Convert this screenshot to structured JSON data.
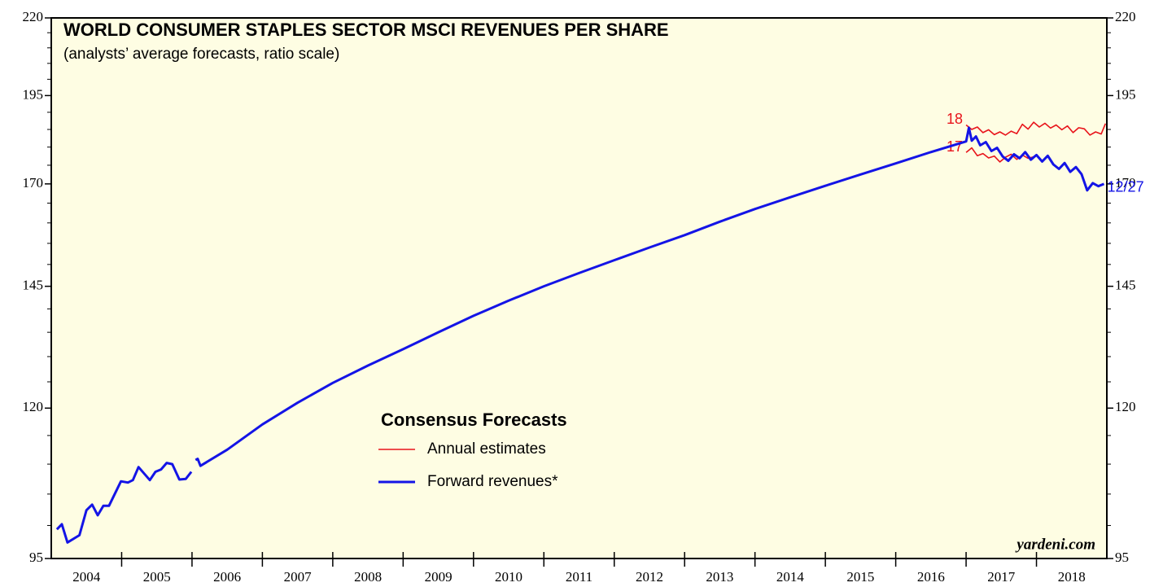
{
  "chart_data": {
    "type": "line",
    "title": "WORLD CONSUMER STAPLES SECTOR MSCI REVENUES PER SHARE",
    "subtitle": "(analysts’ average forecasts, ratio scale)",
    "legend_title": "Consensus Forecasts",
    "source": "yardeni.com",
    "log_scale": true,
    "categories": [
      "2004",
      "2005",
      "2006",
      "2007",
      "2008",
      "2009",
      "2010",
      "2011",
      "2012",
      "2013",
      "2014",
      "2015",
      "2016",
      "2017",
      "2018"
    ],
    "xlim": [
      2004,
      2019
    ],
    "ylim": [
      95,
      220
    ],
    "yticks": [
      95,
      120,
      145,
      170,
      195,
      220
    ],
    "yminorticks": [
      100,
      105,
      110,
      115,
      125,
      130,
      135,
      140,
      150,
      155,
      160,
      165,
      175,
      180,
      185,
      190,
      200,
      205,
      210,
      215
    ],
    "series": [
      {
        "name": "Annual estimates",
        "color": "#e8141b",
        "lines": [
          {
            "label": "18",
            "x": [
              2017.0,
              2017.08,
              2017.16,
              2017.24,
              2017.32,
              2017.4,
              2017.48,
              2017.56,
              2017.64,
              2017.72,
              2017.8,
              2017.88,
              2017.96,
              2018.04,
              2018.12,
              2018.2,
              2018.28,
              2018.36,
              2018.44,
              2018.52,
              2018.6,
              2018.68,
              2018.76,
              2018.84,
              2018.92,
              2018.98
            ],
            "values": [
              186.3,
              185.0,
              185.7,
              184.1,
              184.9,
              183.5,
              184.3,
              183.4,
              184.5,
              183.8,
              186.5,
              185.1,
              187.1,
              185.7,
              186.8,
              185.4,
              186.3,
              184.9,
              186.0,
              184.1,
              185.5,
              185.2,
              183.4,
              184.3,
              183.7,
              186.7
            ]
          },
          {
            "label": "17",
            "x": [
              2017.0,
              2017.08,
              2017.16,
              2017.24,
              2017.32,
              2017.4,
              2017.48,
              2017.56,
              2017.64,
              2017.72,
              2017.8,
              2017.88,
              2017.96
            ],
            "values": [
              178.5,
              179.8,
              177.6,
              178.2,
              177.0,
              177.5,
              175.9,
              177.2,
              178.0,
              176.6,
              177.8,
              176.9,
              177.3
            ]
          }
        ]
      },
      {
        "name": "Forward revenues*",
        "color": "#1414e6",
        "end_label": "12/27",
        "x": [
          2004.08,
          2004.15,
          2004.23,
          2004.4,
          2004.5,
          2004.58,
          2004.66,
          2004.74,
          2004.82,
          2004.99,
          2005.09,
          2005.16,
          2005.24,
          2005.4,
          2005.48,
          2005.56,
          2005.64,
          2005.72,
          2005.82,
          2005.91,
          2005.99,
          2006.02,
          2006.05,
          2006.08,
          2006.12,
          2006.5,
          2007,
          2007.5,
          2008,
          2008.5,
          2009,
          2009.5,
          2010,
          2010.5,
          2011,
          2011.5,
          2012,
          2012.5,
          2013,
          2013.5,
          2014,
          2014.5,
          2015,
          2015.5,
          2016,
          2016.5,
          2017.0,
          2017.04,
          2017.08,
          2017.14,
          2017.2,
          2017.28,
          2017.36,
          2017.44,
          2017.52,
          2017.6,
          2017.68,
          2017.76,
          2017.84,
          2017.92,
          2018.0,
          2018.08,
          2018.16,
          2018.24,
          2018.32,
          2018.4,
          2018.48,
          2018.56,
          2018.64,
          2018.72,
          2018.8,
          2018.88,
          2018.96
        ],
        "values": [
          99.4,
          100.2,
          97.4,
          98.5,
          102.4,
          103.3,
          101.6,
          103.1,
          103.1,
          107.1,
          106.9,
          107.3,
          109.5,
          107.3,
          108.7,
          109.1,
          110.2,
          110.0,
          107.4,
          107.5,
          108.7,
          null,
          110.7,
          110.9,
          109.7,
          112.5,
          117.0,
          121.0,
          124.8,
          128.2,
          131.5,
          135.0,
          138.5,
          141.8,
          145.0,
          148.0,
          151.0,
          154.0,
          157.0,
          160.3,
          163.5,
          166.5,
          169.5,
          172.5,
          175.5,
          178.6,
          181.6,
          185.5,
          181.8,
          183.0,
          180.5,
          181.4,
          178.9,
          179.8,
          177.4,
          176.2,
          178.0,
          176.9,
          178.6,
          176.5,
          177.8,
          176.0,
          177.6,
          175.2,
          174.0,
          175.6,
          173.2,
          174.5,
          172.6,
          168.3,
          170.2,
          169.4,
          170.0
        ]
      }
    ]
  }
}
